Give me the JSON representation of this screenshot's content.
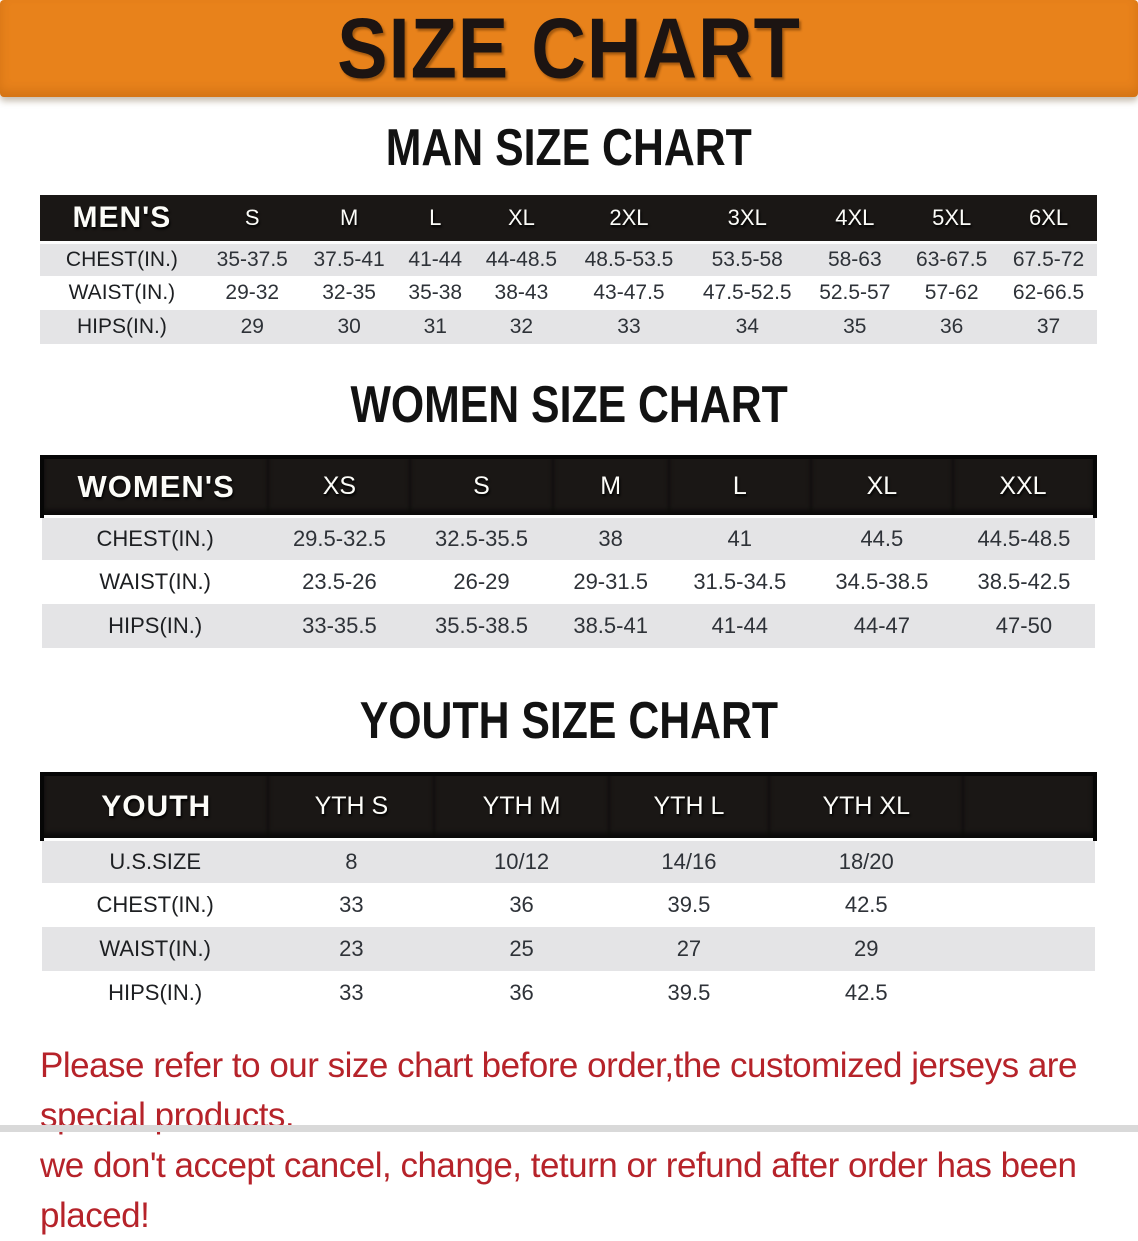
{
  "banner": {
    "title": "SIZE CHART"
  },
  "sections": [
    {
      "heading": "MAN SIZE CHART",
      "table": {
        "header_label": "MEN'S",
        "sizes": [
          "S",
          "M",
          "L",
          "XL",
          "2XL",
          "3XL",
          "4XL",
          "5XL",
          "6XL"
        ],
        "rows": [
          {
            "label": "CHEST(IN.)",
            "values": [
              "35-37.5",
              "37.5-41",
              "41-44",
              "44-48.5",
              "48.5-53.5",
              "53.5-58",
              "58-63",
              "63-67.5",
              "67.5-72"
            ]
          },
          {
            "label": "WAIST(IN.)",
            "values": [
              "29-32",
              "32-35",
              "35-38",
              "38-43",
              "43-47.5",
              "47.5-52.5",
              "52.5-57",
              "57-62",
              "62-66.5"
            ]
          },
          {
            "label": "HIPS(IN.)",
            "values": [
              "29",
              "30",
              "31",
              "32",
              "33",
              "34",
              "35",
              "36",
              "37"
            ]
          }
        ]
      }
    },
    {
      "heading": "WOMEN SIZE CHART",
      "table": {
        "header_label": "WOMEN'S",
        "sizes": [
          "XS",
          "S",
          "M",
          "L",
          "XL",
          "XXL"
        ],
        "rows": [
          {
            "label": "CHEST(IN.)",
            "values": [
              "29.5-32.5",
              "32.5-35.5",
              "38",
              "41",
              "44.5",
              "44.5-48.5"
            ]
          },
          {
            "label": "WAIST(IN.)",
            "values": [
              "23.5-26",
              "26-29",
              "29-31.5",
              "31.5-34.5",
              "34.5-38.5",
              "38.5-42.5"
            ]
          },
          {
            "label": "HIPS(IN.)",
            "values": [
              "33-35.5",
              "35.5-38.5",
              "38.5-41",
              "41-44",
              "44-47",
              "47-50"
            ]
          }
        ]
      }
    },
    {
      "heading": "YOUTH SIZE CHART",
      "table": {
        "header_label": "YOUTH",
        "sizes": [
          "YTH S",
          "YTH M",
          "YTH L",
          "YTH XL"
        ],
        "rows": [
          {
            "label": "U.S.SIZE",
            "values": [
              "8",
              "10/12",
              "14/16",
              "18/20"
            ]
          },
          {
            "label": "CHEST(IN.)",
            "values": [
              "33",
              "36",
              "39.5",
              "42.5"
            ]
          },
          {
            "label": "WAIST(IN.)",
            "values": [
              "23",
              "25",
              "27",
              "29"
            ]
          },
          {
            "label": "HIPS(IN.)",
            "values": [
              "33",
              "36",
              "39.5",
              "42.5"
            ]
          }
        ]
      }
    }
  ],
  "disclaimer": {
    "line1": "Please refer to our size chart before order,the customized jerseys are special products,",
    "line2": "we don't accept cancel, change, teturn or refund after order has been placed!"
  },
  "colors": {
    "banner_orange": "#e8821b",
    "header_band_black": "#1a1715",
    "row_stripe_gray": "#e4e4e6",
    "disclaimer_red": "#b6232a"
  }
}
